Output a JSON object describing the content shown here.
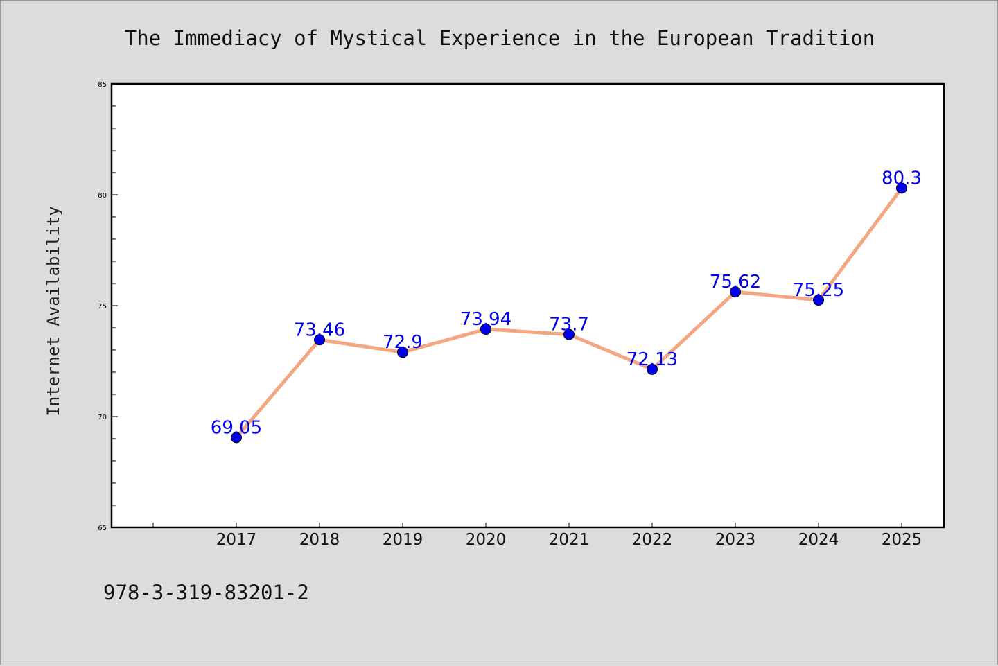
{
  "chart_data": {
    "type": "line",
    "title": "The Immediacy of Mystical Experience in the European Tradition",
    "ylabel": "Internet Availability",
    "xlabel": "",
    "categories": [
      "2017",
      "2018",
      "2019",
      "2020",
      "2021",
      "2022",
      "2023",
      "2024",
      "2025"
    ],
    "series": [
      {
        "values": [
          69.05,
          73.46,
          72.9,
          73.94,
          73.7,
          72.13,
          75.62,
          75.25,
          80.3
        ],
        "labels": [
          "69.05",
          "73.46",
          "72.9",
          "73.94",
          "73.7",
          "72.13",
          "75.62",
          "75.25",
          "80.3"
        ],
        "line_color": "#f4a582",
        "marker_color": "#0000ee"
      }
    ],
    "ylim": [
      65,
      85
    ],
    "yticks": [
      "65",
      "70",
      "75",
      "80",
      "85"
    ],
    "grid": false,
    "legend": "none",
    "data_label_color": "#0000ee"
  },
  "footer_code": "978-3-319-83201-2"
}
